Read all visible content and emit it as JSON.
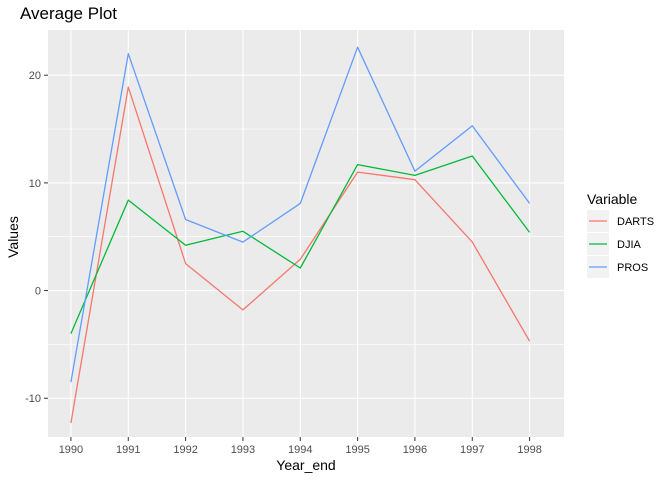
{
  "chart_data": {
    "type": "line",
    "title": "Average Plot",
    "xlabel": "Year_end",
    "ylabel": "Values",
    "x": [
      1990,
      1991,
      1992,
      1993,
      1994,
      1995,
      1996,
      1997,
      1998
    ],
    "x_tick_labels": [
      "1990",
      "1991",
      "1992",
      "1993",
      "1994",
      "1995",
      "1996",
      "1997",
      "1998"
    ],
    "y_ticks": [
      -10,
      0,
      10,
      20
    ],
    "y_tick_labels": [
      "-10",
      "0",
      "10",
      "20"
    ],
    "xlim": [
      1989.6,
      1998.6
    ],
    "ylim": [
      -13.6,
      24.2
    ],
    "grid": true,
    "legend": {
      "title": "Variable",
      "position": "right"
    },
    "series": [
      {
        "name": "DARTS",
        "color": "#F8766D",
        "values": [
          -12.3,
          18.9,
          2.5,
          -1.8,
          2.9,
          11.0,
          10.3,
          4.5,
          -4.7
        ]
      },
      {
        "name": "DJIA",
        "color": "#00BA38",
        "values": [
          -4.0,
          8.4,
          4.2,
          5.5,
          2.1,
          11.7,
          10.7,
          12.5,
          5.4
        ]
      },
      {
        "name": "PROS",
        "color": "#619CFF",
        "values": [
          -8.5,
          22.0,
          6.6,
          4.5,
          8.1,
          22.6,
          11.1,
          15.3,
          8.1
        ]
      }
    ]
  }
}
